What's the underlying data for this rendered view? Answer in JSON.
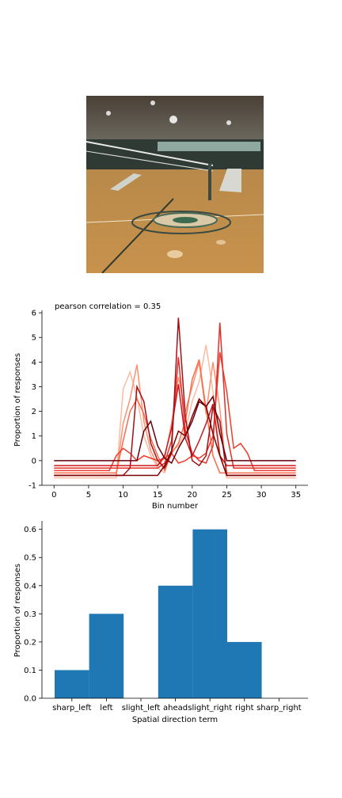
{
  "photo": {
    "icon": "gym-volleyball-court-photo"
  },
  "chart_data": [
    {
      "type": "line",
      "title": "pearson correlation = 0.35",
      "xlabel": "Bin number",
      "ylabel": "Proportion of responses",
      "xlim": [
        -1.75,
        36.75
      ],
      "ylim": [
        -1.0,
        6.1
      ],
      "xticks": [
        0,
        5,
        10,
        15,
        20,
        25,
        30,
        35
      ],
      "yticks": [
        -1,
        0,
        1,
        2,
        3,
        4,
        5,
        6
      ],
      "x": [
        0,
        1,
        2,
        3,
        4,
        5,
        6,
        7,
        8,
        9,
        10,
        11,
        12,
        13,
        14,
        15,
        16,
        17,
        18,
        19,
        20,
        21,
        22,
        23,
        24,
        25,
        26,
        27,
        28,
        29,
        30,
        31,
        32,
        33,
        34,
        35
      ],
      "series": [
        {
          "color": "#fcbba1",
          "values": [
            -0.7,
            -0.7,
            -0.7,
            -0.7,
            -0.7,
            -0.7,
            -0.7,
            -0.7,
            -0.7,
            -0.7,
            2.9,
            3.6,
            2.6,
            1.0,
            0.2,
            -0.3,
            -0.5,
            0.4,
            0.6,
            1.2,
            2.4,
            3.2,
            4.7,
            2.8,
            0.3,
            -0.7,
            -0.7,
            -0.7,
            -0.7,
            -0.7,
            -0.7,
            -0.7,
            -0.7,
            -0.7,
            -0.7,
            -0.7
          ]
        },
        {
          "color": "#fc9272",
          "values": [
            -0.6,
            -0.6,
            -0.6,
            -0.6,
            -0.6,
            -0.6,
            -0.6,
            -0.6,
            -0.6,
            -0.6,
            1.5,
            2.5,
            3.9,
            1.6,
            0.4,
            -0.2,
            0.1,
            1.5,
            3.4,
            2.0,
            3.0,
            4.0,
            1.9,
            4.0,
            2.1,
            -0.6,
            -0.6,
            -0.6,
            -0.6,
            -0.6,
            -0.6,
            -0.6,
            -0.6,
            -0.6,
            -0.6,
            -0.6
          ]
        },
        {
          "color": "#fb6a4a",
          "values": [
            -0.5,
            -0.5,
            -0.5,
            -0.5,
            -0.5,
            -0.5,
            -0.5,
            -0.5,
            -0.5,
            -0.5,
            0.8,
            2.0,
            2.5,
            1.9,
            0.9,
            0.2,
            -0.4,
            0.3,
            0.7,
            1.6,
            3.3,
            4.1,
            2.1,
            0.2,
            -0.5,
            -0.5,
            -0.5,
            -0.5,
            -0.5,
            -0.5,
            -0.5,
            -0.5,
            -0.5,
            -0.5,
            -0.5,
            -0.5
          ]
        },
        {
          "color": "#ef3b2c",
          "values": [
            -0.4,
            -0.4,
            -0.4,
            -0.4,
            -0.4,
            -0.4,
            -0.4,
            -0.4,
            -0.4,
            0.2,
            0.5,
            0.3,
            0.0,
            0.2,
            0.1,
            0.0,
            0.1,
            0.3,
            -0.1,
            0.0,
            0.2,
            0.1,
            0.3,
            1.0,
            4.4,
            2.8,
            0.5,
            0.7,
            0.3,
            -0.4,
            -0.4,
            -0.4,
            -0.4,
            -0.4,
            -0.4,
            -0.4
          ]
        },
        {
          "color": "#e32f27",
          "values": [
            -0.3,
            -0.3,
            -0.3,
            -0.3,
            -0.3,
            -0.3,
            -0.3,
            -0.3,
            -0.3,
            -0.3,
            -0.3,
            -0.3,
            -0.3,
            -0.3,
            -0.3,
            -0.3,
            -0.1,
            0.8,
            4.2,
            1.2,
            0.3,
            0.0,
            -0.1,
            0.6,
            5.6,
            1.1,
            -0.3,
            -0.3,
            -0.3,
            -0.3,
            -0.3,
            -0.3,
            -0.3,
            -0.3,
            -0.3,
            -0.3
          ]
        },
        {
          "color": "#cb181d",
          "values": [
            -0.2,
            -0.2,
            -0.2,
            -0.2,
            -0.2,
            -0.2,
            -0.2,
            -0.2,
            -0.2,
            -0.2,
            -0.2,
            -0.2,
            -0.2,
            -0.2,
            -0.2,
            -0.2,
            0.2,
            1.3,
            3.1,
            0.9,
            0.2,
            0.8,
            1.5,
            2.3,
            0.2,
            -0.2,
            -0.2,
            -0.2,
            -0.2,
            -0.2,
            -0.2,
            -0.2,
            -0.2,
            -0.2,
            -0.2,
            -0.2
          ]
        },
        {
          "color": "#a50f15",
          "values": [
            -0.6,
            -0.6,
            -0.6,
            -0.6,
            -0.6,
            -0.6,
            -0.6,
            -0.6,
            -0.6,
            -0.6,
            -0.6,
            -0.3,
            3.0,
            2.4,
            0.7,
            0.0,
            -0.3,
            0.3,
            5.8,
            1.8,
            0.0,
            -0.2,
            0.2,
            2.2,
            1.6,
            -0.6,
            -0.6,
            -0.6,
            -0.6,
            -0.6,
            -0.6,
            -0.6,
            -0.6,
            -0.6,
            -0.6,
            -0.6
          ]
        },
        {
          "color": "#67000d",
          "values": [
            0.0,
            0.0,
            0.0,
            0.0,
            0.0,
            0.0,
            0.0,
            0.0,
            0.0,
            0.0,
            0.0,
            0.0,
            0.0,
            1.2,
            1.6,
            0.6,
            0.1,
            -0.1,
            0.5,
            1.0,
            1.6,
            2.4,
            2.2,
            2.6,
            1.1,
            0.0,
            0.0,
            0.0,
            0.0,
            0.0,
            0.0,
            0.0,
            0.0,
            0.0,
            0.0,
            0.0
          ]
        },
        {
          "color": "#7f0000",
          "values": [
            -0.6,
            -0.6,
            -0.6,
            -0.6,
            -0.6,
            -0.6,
            -0.6,
            -0.6,
            -0.6,
            -0.6,
            -0.6,
            -0.6,
            -0.6,
            -0.6,
            -0.6,
            -0.6,
            -0.2,
            0.4,
            1.2,
            1.0,
            1.8,
            2.5,
            2.2,
            1.1,
            0.2,
            -0.6,
            -0.6,
            -0.6,
            -0.6,
            -0.6,
            -0.6,
            -0.6,
            -0.6,
            -0.6,
            -0.6,
            -0.6
          ]
        }
      ]
    },
    {
      "type": "bar",
      "xlabel": "Spatial direction term",
      "ylabel": "Proportion of responses",
      "ylim": [
        0.0,
        0.63
      ],
      "yticks": [
        "0.0",
        "0.1",
        "0.2",
        "0.3",
        "0.4",
        "0.5",
        "0.6"
      ],
      "categories": [
        "sharp_left",
        "left",
        "slight_left",
        "ahead",
        "slight_right",
        "right",
        "sharp_right"
      ],
      "values": [
        0.1,
        0.3,
        0.0,
        0.4,
        0.6,
        0.2,
        0.0
      ],
      "bar_color": "#1f77b4"
    }
  ]
}
